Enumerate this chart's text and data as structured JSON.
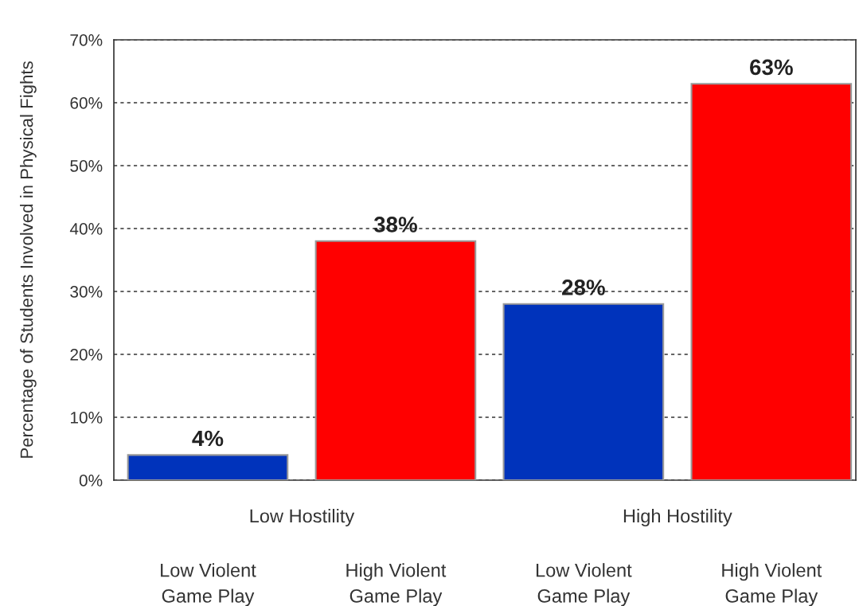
{
  "chart_data": {
    "type": "bar",
    "ylabel": "Percentage of Students Involved in Physical Fights",
    "categories": [
      "Low Violent\nGame Play",
      "High Violent\nGame Play",
      "Low Violent\nGame Play",
      "High Violent\nGame Play"
    ],
    "values": [
      4,
      38,
      28,
      63
    ],
    "colors": [
      "#0033bb",
      "#ff0000",
      "#0033bb",
      "#ff0000"
    ],
    "value_labels": [
      "4%",
      "38%",
      "28%",
      "63%"
    ],
    "annotations": [
      "Low Hostility",
      "High Hostility"
    ],
    "ylim": [
      0,
      70
    ],
    "yticks": [
      {
        "value": 0,
        "label": "0%"
      },
      {
        "value": 10,
        "label": "10%"
      },
      {
        "value": 20,
        "label": "20%"
      },
      {
        "value": 30,
        "label": "30%"
      },
      {
        "value": 40,
        "label": "40%"
      },
      {
        "value": 50,
        "label": "50%"
      },
      {
        "value": 60,
        "label": "60%"
      },
      {
        "value": 70,
        "label": "70%"
      }
    ],
    "grid": "y"
  }
}
